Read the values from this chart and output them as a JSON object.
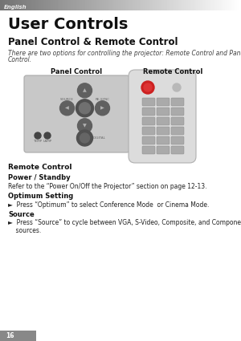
{
  "bg_color": "#ffffff",
  "header_text": "English",
  "title": "User Controls",
  "section_title": "Panel Control & Remote Control",
  "intro_line1": "There are two options for controlling the projector: Remote Control and Panel",
  "intro_line2": "Control.",
  "label_panel": "Panel Control",
  "label_remote": "Remote Control",
  "section2_title": "Remote Control",
  "sub1_title": "Power / Standby",
  "sub1_text": "Refer to the “Power On/Off the Projector” section on page 12-13.",
  "sub2_title": "Optimum Setting",
  "sub2_bullet": "►  Press “Optimum” to select Conference Mode  or Cinema Mode.",
  "sub3_title": "Source",
  "sub3_line1": "►  Press “Source” to cycle between VGA, S-Video, Composite, and Component",
  "sub3_line2": "    sources.",
  "footer_text": "16"
}
